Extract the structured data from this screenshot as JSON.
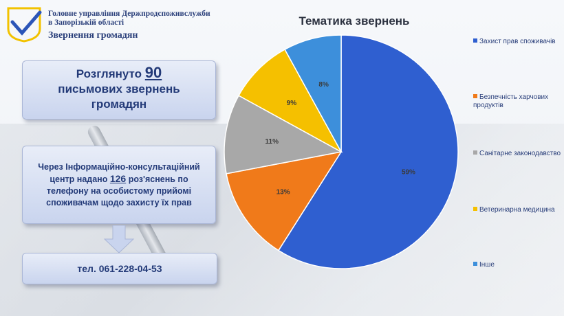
{
  "header": {
    "org_line1": "Головне управління Держпродспоживслужби",
    "org_line2": "в Запорізькій області",
    "subtitle": "Звернення громадян"
  },
  "box1": {
    "pre": "Розглянуто",
    "number": "90",
    "line2": "письмових звернень",
    "line3": "громадян"
  },
  "box2": {
    "line1": "Через Інформаційно-консультаційний",
    "line2_pre": "центр  надано",
    "number": "126",
    "line2_post": "роз'яснень по",
    "line3": "телефону на особистому прийомі",
    "line4": "споживачам щодо захисту їх прав"
  },
  "box3": {
    "phone": "тел.  061-228-04-53"
  },
  "chart_data": {
    "type": "pie",
    "title": "Тематика звернень",
    "series": [
      {
        "name": "Захист прав споживачів",
        "value": 59,
        "label": "59%",
        "color": "#2f5fd0"
      },
      {
        "name": "Безпечність харчових продуктів",
        "value": 13,
        "label": "13%",
        "color": "#f07a1a"
      },
      {
        "name": "Санітарне законодавство",
        "value": 11,
        "label": "11%",
        "color": "#a8a8a8"
      },
      {
        "name": "Ветеринарна медицина",
        "value": 9,
        "label": "9%",
        "color": "#f5c000"
      },
      {
        "name": "Інше",
        "value": 8,
        "label": "8%",
        "color": "#3d8fdb"
      }
    ],
    "legend_position": "right"
  }
}
